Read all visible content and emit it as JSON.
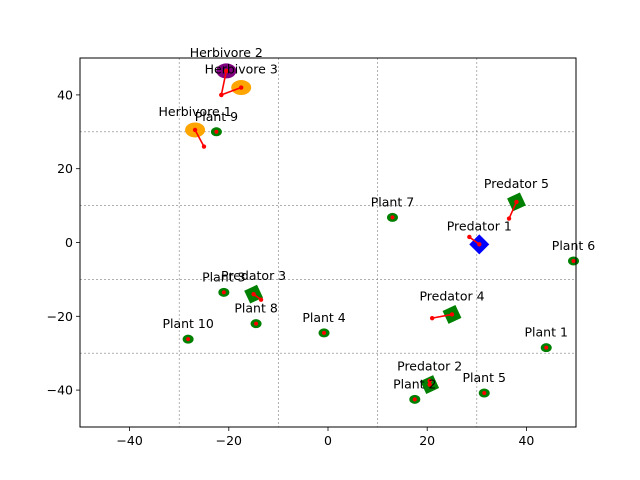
{
  "chart_data": {
    "type": "scatter",
    "title": "",
    "xlabel": "",
    "ylabel": "",
    "xlim": [
      -50,
      50
    ],
    "ylim": [
      -50,
      50
    ],
    "xticks": [
      -40,
      -20,
      0,
      20,
      40
    ],
    "yticks": [
      -40,
      -20,
      0,
      20,
      40
    ],
    "grid": {
      "style": "dashed",
      "x_lines": [
        -30,
        -10,
        10,
        30
      ],
      "y_lines": [
        -30,
        -10,
        10,
        30
      ]
    },
    "colors": {
      "plant": "#008000",
      "plant_center": "#ff0000",
      "herbivore": "#ffa500",
      "herbivore_alt": "#800080",
      "predator": "#008000",
      "predator_alt": "#0000ff",
      "direction": "#ff0000"
    },
    "entities": [
      {
        "label": "Plant 1",
        "kind": "plant",
        "x": 44,
        "y": -28.5
      },
      {
        "label": "Plant 2",
        "kind": "plant",
        "x": 17.5,
        "y": -42.5
      },
      {
        "label": "Plant 3",
        "kind": "plant",
        "x": -21,
        "y": -13.5
      },
      {
        "label": "Plant 4",
        "kind": "plant",
        "x": -0.8,
        "y": -24.5
      },
      {
        "label": "Plant 5",
        "kind": "plant",
        "x": 31.5,
        "y": -40.8
      },
      {
        "label": "Plant 6",
        "kind": "plant",
        "x": 49.5,
        "y": -5
      },
      {
        "label": "Plant 7",
        "kind": "plant",
        "x": 13,
        "y": 6.8
      },
      {
        "label": "Plant 8",
        "kind": "plant",
        "x": -14.5,
        "y": -22
      },
      {
        "label": "Plant 9",
        "kind": "plant",
        "x": -22.5,
        "y": 30
      },
      {
        "label": "Plant 10",
        "kind": "plant",
        "x": -28.2,
        "y": -26.2
      },
      {
        "label": "Herbivore 1",
        "kind": "herbivore",
        "color": "herbivore",
        "x": -26.8,
        "y": 30.5,
        "dir": [
          -25,
          26
        ]
      },
      {
        "label": "Herbivore 2",
        "kind": "herbivore",
        "color": "herbivore_alt",
        "x": -20.5,
        "y": 46.5,
        "dir": [
          -21.5,
          40
        ]
      },
      {
        "label": "Herbivore 3",
        "kind": "herbivore",
        "color": "herbivore",
        "x": -17.5,
        "y": 42,
        "dir": [
          -21.5,
          40
        ]
      },
      {
        "label": "Predator 1",
        "kind": "predator",
        "color": "predator_alt",
        "x": 30.5,
        "y": -0.5,
        "dir": [
          28.5,
          1.5
        ]
      },
      {
        "label": "Predator 2",
        "kind": "predator",
        "color": "predator",
        "x": 20.5,
        "y": -38.5,
        "dir": [
          20.5,
          -37.5
        ]
      },
      {
        "label": "Predator 3",
        "kind": "predator",
        "color": "predator",
        "x": -15,
        "y": -14,
        "dir": [
          -13.5,
          -15.5
        ]
      },
      {
        "label": "Predator 4",
        "kind": "predator",
        "color": "predator",
        "x": 25,
        "y": -19.5,
        "dir": [
          21,
          -20.5
        ]
      },
      {
        "label": "Predator 5",
        "kind": "predator",
        "color": "predator",
        "x": 38,
        "y": 11,
        "dir": [
          36.5,
          6.5
        ]
      }
    ]
  }
}
